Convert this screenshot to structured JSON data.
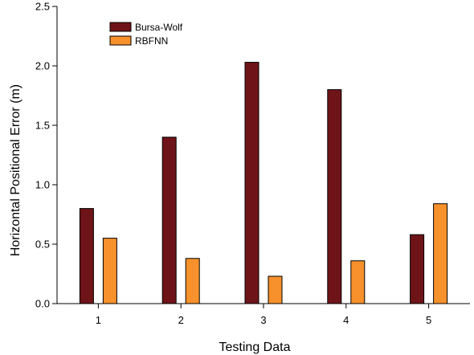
{
  "chart_data": {
    "type": "bar",
    "categories": [
      "1",
      "2",
      "3",
      "4",
      "5"
    ],
    "series": [
      {
        "name": "Bursa-Wolf",
        "color": "#6e1418",
        "values": [
          0.8,
          1.4,
          2.03,
          1.8,
          0.58
        ]
      },
      {
        "name": "RBFNN",
        "color": "#f7912c",
        "values": [
          0.55,
          0.38,
          0.23,
          0.36,
          0.84
        ]
      }
    ],
    "xlabel": "Testing Data",
    "ylabel": "Horizontal Positional Error (m)",
    "ylim": [
      0,
      2.5
    ],
    "yticks": [
      "0.0",
      "0.5",
      "1.0",
      "1.5",
      "2.0",
      "2.5"
    ],
    "grid": false,
    "legend_position": "top-left"
  }
}
